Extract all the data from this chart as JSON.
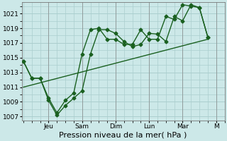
{
  "xlabel": "Pression niveau de la mer( hPa )",
  "bg_color": "#cce8e8",
  "grid_color": "#aacece",
  "line_color": "#1a6020",
  "ylim": [
    1006.5,
    1022.5
  ],
  "yticks": [
    1007,
    1009,
    1011,
    1013,
    1015,
    1017,
    1019,
    1021
  ],
  "day_labels": [
    "Jeu",
    "Sam",
    "Dim",
    "Lun",
    "Mar",
    "M"
  ],
  "day_x": [
    3,
    7,
    11,
    15,
    19,
    23
  ],
  "x_vlines": [
    3,
    7,
    11,
    15,
    19,
    23
  ],
  "xlim": [
    -0.2,
    24
  ],
  "line1_x": [
    0,
    1,
    2,
    3,
    4,
    5,
    6,
    7,
    8,
    9,
    10,
    11,
    12,
    13,
    14,
    15,
    16,
    17,
    18,
    19,
    20,
    21,
    22
  ],
  "line1_y": [
    1014.5,
    1012.2,
    1012.2,
    1009.2,
    1007.2,
    1008.5,
    1009.5,
    1010.5,
    1015.5,
    1018.8,
    1018.8,
    1018.3,
    1017.2,
    1016.5,
    1016.8,
    1018.3,
    1018.2,
    1017.2,
    1020.6,
    1020.0,
    1022.2,
    1021.8,
    1017.8
  ],
  "line2_x": [
    0,
    1,
    2,
    3,
    4,
    5,
    6,
    7,
    8,
    9,
    10,
    11,
    12,
    13,
    14,
    15,
    16,
    17,
    18,
    19,
    20,
    21,
    22
  ],
  "line2_y": [
    1014.5,
    1012.2,
    1012.2,
    1009.5,
    1007.5,
    1009.2,
    1010.2,
    1015.5,
    1018.8,
    1019.0,
    1017.5,
    1017.5,
    1016.8,
    1016.8,
    1018.8,
    1017.5,
    1017.5,
    1020.6,
    1020.2,
    1022.2,
    1022.0,
    1021.8,
    1017.8
  ],
  "trend_x": [
    0,
    22
  ],
  "trend_y": [
    1011.0,
    1017.5
  ],
  "marker": "D",
  "markersize": 2.5,
  "linewidth": 1.0,
  "xlabel_fontsize": 8,
  "tick_fontsize": 6.5
}
